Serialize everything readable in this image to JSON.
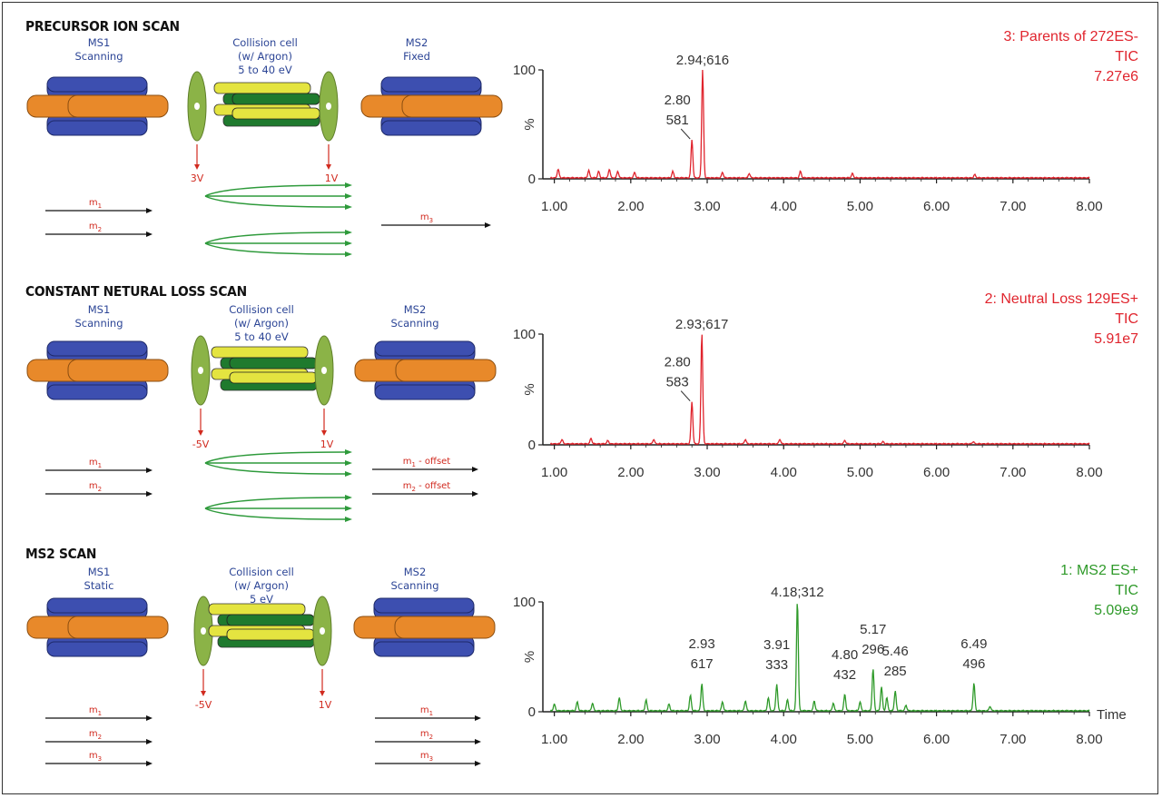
{
  "panels": [
    {
      "title": "PRECURSOR ION SCAN",
      "ms1": {
        "name": "MS1",
        "mode": "Scanning"
      },
      "cell": {
        "name": "Collision cell",
        "gas": "(w/ Argon)",
        "energy": "5 to 40 eV"
      },
      "ms2": {
        "name": "MS2",
        "mode": "Fixed"
      },
      "entry_voltage": "3V",
      "exit_voltage": "1V",
      "ms1_arrows": [
        {
          "m": "m",
          "sub": "1"
        },
        {
          "m": "m",
          "sub": "2"
        }
      ],
      "ms2_arrows": [
        {
          "m": "m",
          "sub": "3",
          "suffix": ""
        }
      ],
      "legend": {
        "line1": "3: Parents of 272ES-",
        "line2": "TIC",
        "line3": "7.27e6",
        "color": "#e0242d"
      }
    },
    {
      "title": "CONSTANT NETURAL LOSS SCAN",
      "ms1": {
        "name": "MS1",
        "mode": "Scanning"
      },
      "cell": {
        "name": "Collision cell",
        "gas": "(w/ Argon)",
        "energy": "5 to 40 eV"
      },
      "ms2": {
        "name": "MS2",
        "mode": "Scanning"
      },
      "entry_voltage": "-5V",
      "exit_voltage": "1V",
      "ms1_arrows": [
        {
          "m": "m",
          "sub": "1"
        },
        {
          "m": "m",
          "sub": "2"
        }
      ],
      "ms2_arrows": [
        {
          "m": "m",
          "sub": "1",
          "suffix": " - offset"
        },
        {
          "m": "m",
          "sub": "2",
          "suffix": " - offset"
        }
      ],
      "legend": {
        "line1": "2: Neutral Loss 129ES+",
        "line2": "TIC",
        "line3": "5.91e7",
        "color": "#e0242d"
      }
    },
    {
      "title": "MS2 SCAN",
      "ms1": {
        "name": "MS1",
        "mode": "Static"
      },
      "cell": {
        "name": "Collision cell",
        "gas": "(w/ Argon)",
        "energy": "5 eV"
      },
      "ms2": {
        "name": "MS2",
        "mode": "Scanning"
      },
      "entry_voltage": "-5V",
      "exit_voltage": "1V",
      "ms1_arrows": [
        {
          "m": "m",
          "sub": "1"
        },
        {
          "m": "m",
          "sub": "2"
        },
        {
          "m": "m",
          "sub": "3"
        }
      ],
      "ms2_arrows": [
        {
          "m": "m",
          "sub": "1",
          "suffix": ""
        },
        {
          "m": "m",
          "sub": "2",
          "suffix": ""
        },
        {
          "m": "m",
          "sub": "3",
          "suffix": ""
        }
      ],
      "legend": {
        "line1": "1: MS2 ES+",
        "line2": "TIC",
        "line3": "5.09e9",
        "color": "#2f9a2a"
      }
    }
  ],
  "colors": {
    "rod_blue": "#3d4fb0",
    "rod_orange": "#e8892a",
    "disc_green": "#8bb347",
    "cell_green": "#1f7a2e",
    "cell_yellow": "#e4e440",
    "arrow_green": "#2e9a3b",
    "voltage_red": "#d12a1f"
  },
  "chart_data": [
    {
      "type": "line",
      "title": "3: Parents of 272ES-",
      "ylabel": "%",
      "xlabel": "",
      "xlim": [
        0.85,
        8.0
      ],
      "ylim": [
        0,
        100
      ],
      "x_ticks": [
        "1.00",
        "2.00",
        "3.00",
        "4.00",
        "5.00",
        "6.00",
        "7.00",
        "8.00"
      ],
      "y_ticks": [
        "0",
        "100"
      ],
      "color": "#e0242d",
      "peaks": [
        {
          "x": 2.94,
          "y": 100,
          "label": "2.94;616"
        },
        {
          "x": 2.8,
          "y": 35,
          "label": "2.80\n581"
        }
      ],
      "baseline_noise": [
        [
          1.05,
          8
        ],
        [
          1.45,
          7
        ],
        [
          1.58,
          6
        ],
        [
          1.72,
          8
        ],
        [
          1.83,
          6
        ],
        [
          2.05,
          5
        ],
        [
          2.55,
          6
        ],
        [
          3.2,
          5
        ],
        [
          3.55,
          4
        ],
        [
          4.22,
          6
        ],
        [
          4.9,
          4
        ],
        [
          6.5,
          3
        ]
      ]
    },
    {
      "type": "line",
      "title": "2: Neutral Loss 129ES+",
      "ylabel": "%",
      "xlabel": "",
      "xlim": [
        0.85,
        8.0
      ],
      "ylim": [
        0,
        100
      ],
      "x_ticks": [
        "1.00",
        "2.00",
        "3.00",
        "4.00",
        "5.00",
        "6.00",
        "7.00",
        "8.00"
      ],
      "y_ticks": [
        "0",
        "100"
      ],
      "color": "#e0242d",
      "peaks": [
        {
          "x": 2.93,
          "y": 100,
          "label": "2.93;617"
        },
        {
          "x": 2.8,
          "y": 38,
          "label": "2.80\n583"
        }
      ],
      "baseline_noise": [
        [
          1.1,
          4
        ],
        [
          1.48,
          5
        ],
        [
          1.7,
          3
        ],
        [
          2.3,
          4
        ],
        [
          3.5,
          4
        ],
        [
          3.95,
          4
        ],
        [
          4.8,
          3
        ],
        [
          5.3,
          2
        ],
        [
          6.48,
          2
        ]
      ]
    },
    {
      "type": "line",
      "title": "1: MS2 ES+",
      "ylabel": "%",
      "xlabel": "Time",
      "xlim": [
        0.85,
        8.0
      ],
      "ylim": [
        0,
        100
      ],
      "x_ticks": [
        "1.00",
        "2.00",
        "3.00",
        "4.00",
        "5.00",
        "6.00",
        "7.00",
        "8.00"
      ],
      "y_ticks": [
        "0",
        "100"
      ],
      "color": "#2f9a2a",
      "peaks": [
        {
          "x": 4.18,
          "y": 100,
          "label": "4.18;312"
        },
        {
          "x": 2.93,
          "y": 25,
          "label": "2.93\n617"
        },
        {
          "x": 3.91,
          "y": 24,
          "label": "3.91\n333"
        },
        {
          "x": 4.8,
          "y": 15,
          "label": "4.80\n432"
        },
        {
          "x": 5.17,
          "y": 38,
          "label": "5.17\n296"
        },
        {
          "x": 5.46,
          "y": 18,
          "label": "5.46\n285"
        },
        {
          "x": 6.49,
          "y": 25,
          "label": "6.49\n496"
        }
      ],
      "baseline_noise": [
        [
          1.0,
          6
        ],
        [
          1.3,
          8
        ],
        [
          1.5,
          7
        ],
        [
          1.85,
          12
        ],
        [
          2.2,
          10
        ],
        [
          2.5,
          6
        ],
        [
          2.78,
          14
        ],
        [
          3.2,
          8
        ],
        [
          3.5,
          9
        ],
        [
          3.8,
          12
        ],
        [
          4.05,
          10
        ],
        [
          4.4,
          9
        ],
        [
          4.65,
          7
        ],
        [
          5.0,
          8
        ],
        [
          5.28,
          22
        ],
        [
          5.35,
          12
        ],
        [
          5.6,
          5
        ],
        [
          6.7,
          4
        ]
      ]
    }
  ]
}
